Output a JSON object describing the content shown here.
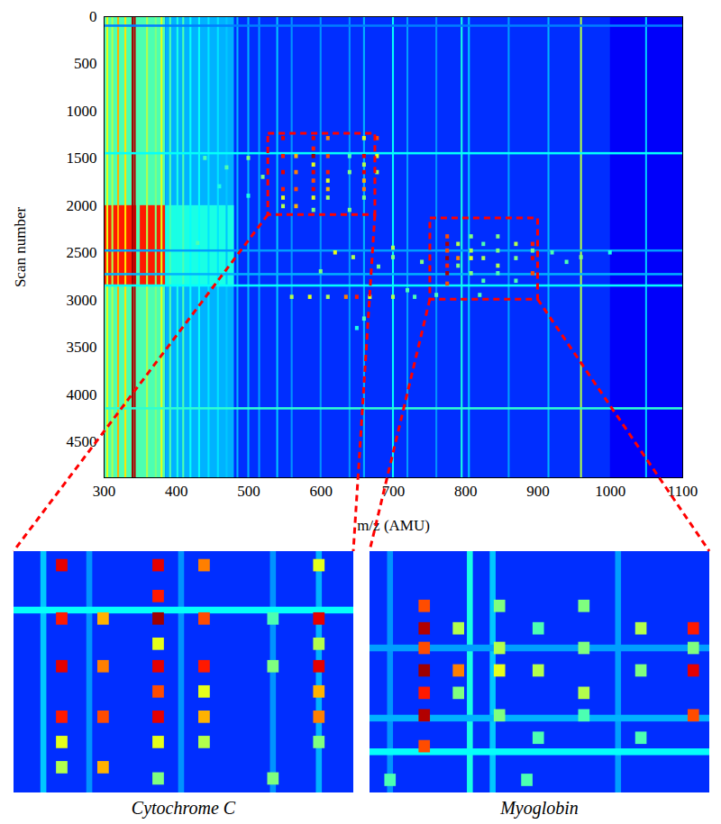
{
  "chart_data": {
    "type": "heatmap",
    "x_label": "m/z (AMU)",
    "y_label": "Scan number",
    "xlim": [
      300,
      1100
    ],
    "xticks": [
      300,
      400,
      500,
      600,
      700,
      800,
      900,
      1000,
      1100
    ],
    "ylim": [
      0,
      4880
    ],
    "yticks": [
      0,
      500,
      1000,
      1500,
      2000,
      2500,
      3000,
      3500,
      4000,
      4500
    ],
    "color": "jet",
    "zlim": [
      0,
      1
    ],
    "background": 0.17,
    "blocks": {
      "mz_from": [
        300,
        385,
        1000,
        300,
        350,
        385
      ],
      "mz_to": [
        385,
        480,
        1100,
        345,
        385,
        480
      ],
      "scan_from": [
        0,
        0,
        0,
        2000,
        2000,
        2000
      ],
      "scan_to": [
        4880,
        4880,
        4880,
        2850,
        2850,
        2850
      ],
      "intensity": [
        0.45,
        0.3,
        0.12,
        0.85,
        0.85,
        0.4
      ]
    },
    "vertical_streaks": {
      "mz": [
        305,
        312,
        320,
        330,
        340,
        343,
        360,
        372,
        380,
        392,
        402,
        410,
        420,
        432,
        445,
        458,
        470,
        485,
        500,
        515,
        540,
        560,
        600,
        640,
        660,
        700,
        720,
        760,
        795,
        805,
        860,
        915,
        960,
        1050
      ],
      "intensity": [
        0.6,
        0.55,
        0.7,
        0.65,
        0.97,
        0.95,
        0.55,
        0.5,
        0.6,
        0.45,
        0.4,
        0.45,
        0.38,
        0.38,
        0.35,
        0.35,
        0.32,
        0.3,
        0.3,
        0.28,
        0.32,
        0.27,
        0.27,
        0.27,
        0.3,
        0.38,
        0.28,
        0.27,
        0.4,
        0.32,
        0.28,
        0.3,
        0.55,
        0.32
      ]
    },
    "horizontal_streaks": {
      "scan": [
        100,
        1450,
        2480,
        2730,
        2850,
        4150
      ],
      "intensity": [
        0.25,
        0.38,
        0.28,
        0.3,
        0.38,
        0.42
      ]
    },
    "spots": {
      "mz": [
        548,
        548,
        548,
        548,
        548,
        548,
        566,
        566,
        566,
        566,
        590,
        590,
        590,
        590,
        590,
        590,
        590,
        590,
        590,
        610,
        610,
        610,
        610,
        610,
        610,
        640,
        640,
        640,
        660,
        660,
        660,
        660,
        660,
        660,
        660,
        678,
        678,
        678,
        440,
        470,
        500,
        520,
        460,
        500,
        430,
        560,
        585,
        610,
        635,
        650,
        668,
        700,
        730,
        620,
        645,
        600,
        680,
        700,
        660,
        650,
        720,
        775,
        775,
        775,
        775,
        775,
        775,
        775,
        790,
        790,
        790,
        808,
        808,
        808,
        808,
        825,
        825,
        825,
        845,
        845,
        845,
        845,
        870,
        870,
        870,
        893,
        893,
        893,
        893,
        920,
        940,
        960,
        1000,
        740,
        700,
        760,
        820
      ],
      "scan": [
        1290,
        1480,
        1650,
        1830,
        1920,
        2010,
        1480,
        1650,
        1830,
        2010,
        1290,
        1400,
        1480,
        1570,
        1650,
        1740,
        1830,
        1920,
        2050,
        1290,
        1480,
        1650,
        1740,
        1830,
        1920,
        1480,
        1650,
        2050,
        1290,
        1480,
        1570,
        1650,
        1740,
        1830,
        1920,
        1290,
        1480,
        1650,
        1500,
        1600,
        1500,
        1700,
        1800,
        1900,
        2400,
        2970,
        2970,
        2970,
        2970,
        2970,
        2970,
        2970,
        2970,
        2500,
        2550,
        2700,
        2650,
        2450,
        3200,
        3300,
        2900,
        2330,
        2410,
        2480,
        2560,
        2640,
        2720,
        2830,
        2410,
        2560,
        2640,
        2330,
        2480,
        2560,
        2720,
        2410,
        2560,
        2800,
        2330,
        2480,
        2640,
        2720,
        2410,
        2560,
        2800,
        2410,
        2560,
        2720,
        2480,
        2500,
        2600,
        2550,
        2500,
        2600,
        2550,
        2950,
        2950
      ],
      "intensity": [
        0.9,
        0.85,
        0.9,
        0.85,
        0.6,
        0.55,
        0.7,
        0.75,
        0.8,
        0.7,
        0.9,
        0.85,
        0.97,
        0.6,
        0.9,
        0.8,
        0.9,
        0.6,
        0.5,
        0.75,
        0.8,
        0.85,
        0.6,
        0.7,
        0.55,
        0.45,
        0.5,
        0.5,
        0.6,
        0.9,
        0.55,
        0.9,
        0.7,
        0.75,
        0.5,
        0.8,
        0.6,
        0.55,
        0.45,
        0.45,
        0.5,
        0.5,
        0.4,
        0.4,
        0.45,
        0.55,
        0.6,
        0.55,
        0.75,
        0.85,
        0.6,
        0.55,
        0.45,
        0.6,
        0.55,
        0.5,
        0.5,
        0.55,
        0.45,
        0.4,
        0.45,
        0.8,
        0.95,
        0.8,
        0.97,
        0.85,
        0.95,
        0.8,
        0.55,
        0.75,
        0.5,
        0.5,
        0.55,
        0.6,
        0.5,
        0.45,
        0.55,
        0.45,
        0.5,
        0.5,
        0.55,
        0.45,
        0.55,
        0.5,
        0.45,
        0.85,
        0.9,
        0.8,
        0.5,
        0.45,
        0.45,
        0.5,
        0.4,
        0.5,
        0.5,
        0.45,
        0.45
      ]
    },
    "zoom_regions": [
      {
        "name": "Cytochrome C",
        "xlim": [
          527,
          675
        ],
        "ylim": [
          1240,
          2100
        ]
      },
      {
        "name": "Myoglobin",
        "xlim": [
          751,
          900
        ],
        "ylim": [
          2135,
          2995
        ]
      }
    ]
  }
}
